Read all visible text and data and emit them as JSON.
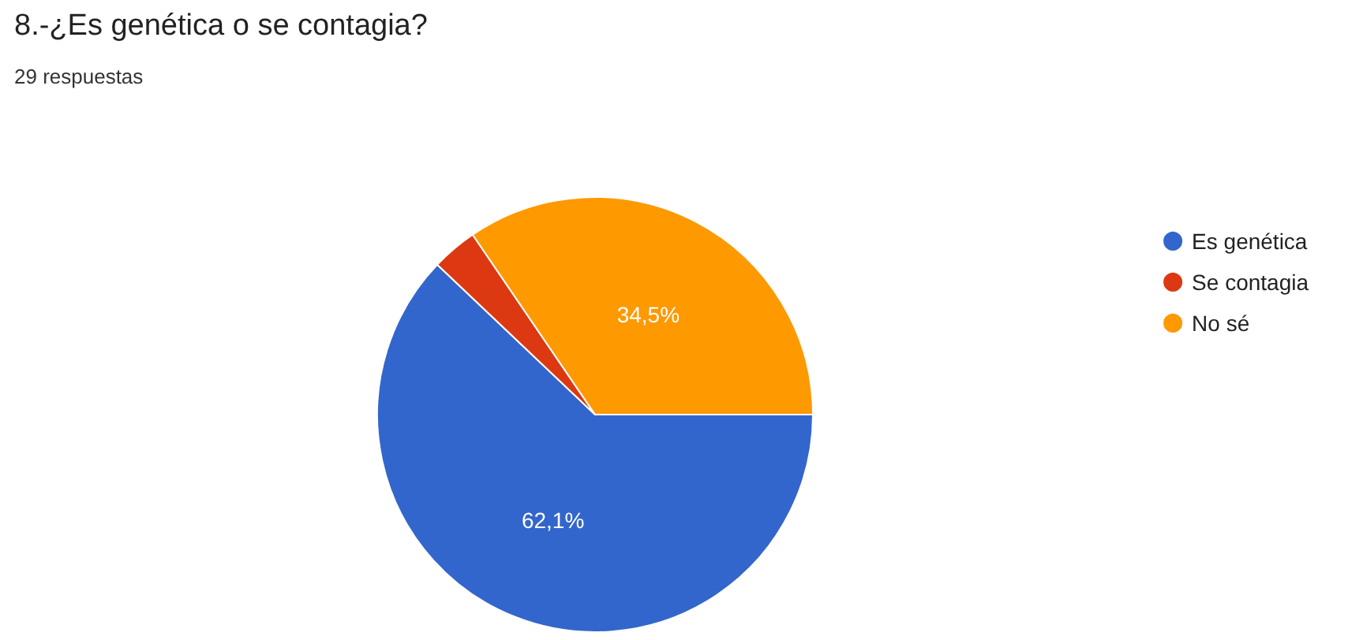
{
  "chart_data": {
    "type": "pie",
    "title": "8.-¿Es genética o se contagia?",
    "subtitle": "29 respuestas",
    "categories": [
      "Es genética",
      "Se contagia",
      "No sé"
    ],
    "values": [
      62.1,
      3.4,
      34.5
    ],
    "value_labels": [
      "62,1%",
      null,
      "34,5%"
    ],
    "colors": [
      "#3366cc",
      "#dc3912",
      "#ff9900"
    ],
    "legend": "right"
  }
}
